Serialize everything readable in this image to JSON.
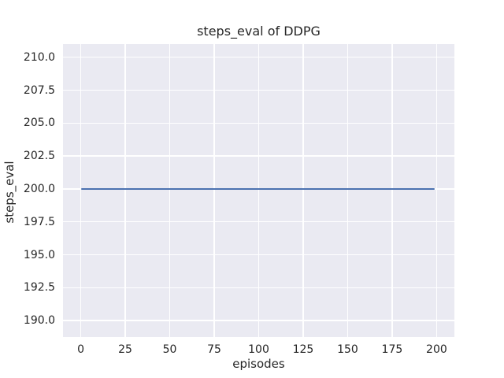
{
  "figure": {
    "background": "#ffffff",
    "axes_background": "#eaeaf2",
    "grid_color": "#ffffff",
    "text_color": "#262626"
  },
  "chart_data": {
    "type": "line",
    "title": "steps_eval of DDPG",
    "xlabel": "episodes",
    "ylabel": "steps_eval",
    "grid": true,
    "legend_position": "none",
    "xlim": [
      -10,
      210
    ],
    "ylim": [
      188.75,
      211
    ],
    "xticks": [
      0,
      25,
      50,
      75,
      100,
      125,
      150,
      175,
      200
    ],
    "xtick_labels": [
      "0",
      "25",
      "50",
      "75",
      "100",
      "125",
      "150",
      "175",
      "200"
    ],
    "yticks": [
      190.0,
      192.5,
      195.0,
      197.5,
      200.0,
      202.5,
      205.0,
      207.5,
      210.0
    ],
    "ytick_labels": [
      "190.0",
      "192.5",
      "195.0",
      "197.5",
      "200.0",
      "202.5",
      "205.0",
      "207.5",
      "210.0"
    ],
    "series": [
      {
        "name": "steps_eval",
        "color": "#4c72b0",
        "x": [
          0,
          199
        ],
        "y": [
          200,
          200
        ]
      }
    ]
  }
}
